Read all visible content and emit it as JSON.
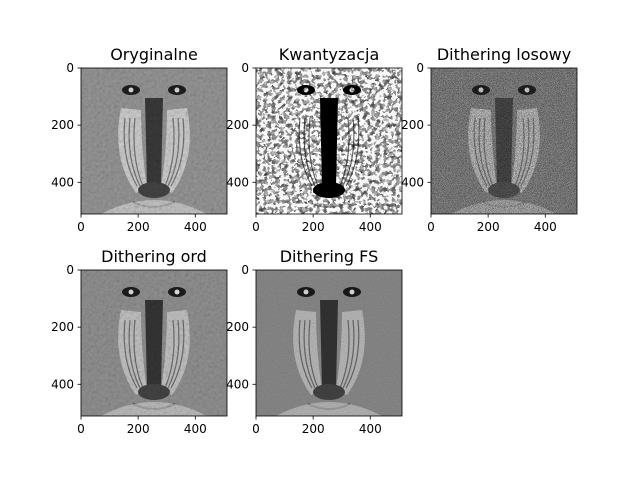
{
  "figure": {
    "background": "#ffffff"
  },
  "chart_data": [
    {
      "type": "image",
      "title": "Oryginalne",
      "style": "grayscale",
      "extent": {
        "x": [
          0,
          511
        ],
        "y": [
          511,
          0
        ]
      },
      "xticks": [
        0,
        200,
        400
      ],
      "yticks": [
        0,
        200,
        400
      ]
    },
    {
      "type": "image",
      "title": "Kwantyzacja",
      "style": "binary",
      "extent": {
        "x": [
          0,
          511
        ],
        "y": [
          511,
          0
        ]
      },
      "xticks": [
        0,
        200,
        400
      ],
      "yticks": [
        0,
        200,
        400
      ]
    },
    {
      "type": "image",
      "title": "Dithering losowy",
      "style": "random",
      "extent": {
        "x": [
          0,
          511
        ],
        "y": [
          511,
          0
        ]
      },
      "xticks": [
        0,
        200,
        400
      ],
      "yticks": [
        0,
        200,
        400
      ]
    },
    {
      "type": "image",
      "title": "Dithering ord",
      "style": "ordered",
      "extent": {
        "x": [
          0,
          511
        ],
        "y": [
          511,
          0
        ]
      },
      "xticks": [
        0,
        200,
        400
      ],
      "yticks": [
        0,
        200,
        400
      ]
    },
    {
      "type": "image",
      "title": "Dithering FS",
      "style": "fs",
      "extent": {
        "x": [
          0,
          511
        ],
        "y": [
          511,
          0
        ]
      },
      "xticks": [
        0,
        200,
        400
      ],
      "yticks": [
        0,
        200,
        400
      ]
    }
  ]
}
